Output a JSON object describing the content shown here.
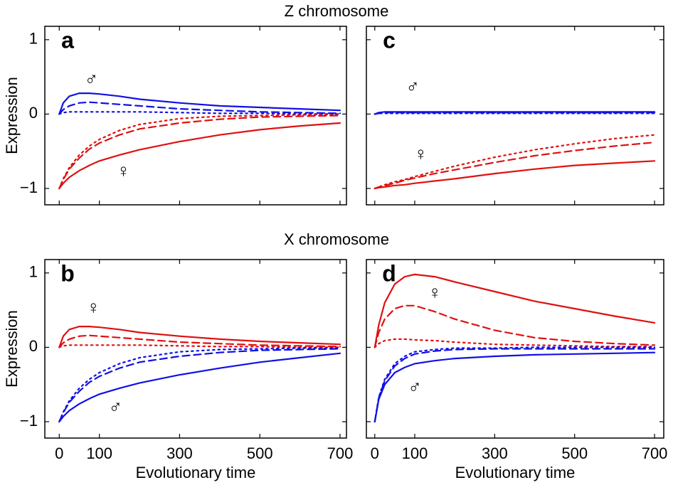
{
  "headings": [
    "Z chromosome",
    "X chromosome"
  ],
  "chart_data": [
    {
      "type": "line",
      "panel": "a",
      "ylabel": "Expression",
      "xlim": [
        -36,
        716
      ],
      "ylim": [
        -1.22,
        1.18
      ],
      "xticks": [
        0,
        100,
        300,
        500,
        700
      ],
      "yticks": [
        -1,
        0,
        1
      ],
      "show_xtick_labels": false,
      "show_ytick_labels": true,
      "x": [
        0,
        10,
        25,
        50,
        75,
        100,
        150,
        200,
        300,
        400,
        500,
        600,
        700
      ],
      "series": [
        {
          "color": "#1010e6",
          "dash": "solid",
          "values": [
            0,
            0.15,
            0.24,
            0.28,
            0.28,
            0.27,
            0.24,
            0.2,
            0.15,
            0.11,
            0.09,
            0.07,
            0.05
          ]
        },
        {
          "color": "#1010e6",
          "dash": "dashed",
          "values": [
            0,
            0.06,
            0.11,
            0.15,
            0.16,
            0.15,
            0.13,
            0.11,
            0.07,
            0.05,
            0.03,
            0.02,
            0.01
          ]
        },
        {
          "color": "#1010e6",
          "dash": "dotted",
          "values": [
            0,
            0.02,
            0.03,
            0.03,
            0.03,
            0.03,
            0.03,
            0.03,
            0.02,
            0.01,
            0.01,
            0,
            0
          ]
        },
        {
          "color": "#e01010",
          "dash": "solid",
          "values": [
            -1,
            -0.93,
            -0.85,
            -0.76,
            -0.69,
            -0.63,
            -0.55,
            -0.48,
            -0.37,
            -0.28,
            -0.21,
            -0.16,
            -0.12
          ]
        },
        {
          "color": "#e01010",
          "dash": "dashed",
          "values": [
            -1,
            -0.88,
            -0.74,
            -0.59,
            -0.47,
            -0.39,
            -0.28,
            -0.2,
            -0.12,
            -0.07,
            -0.04,
            -0.03,
            -0.02
          ]
        },
        {
          "color": "#e01010",
          "dash": "dotted",
          "values": [
            -1,
            -0.87,
            -0.72,
            -0.55,
            -0.43,
            -0.34,
            -0.22,
            -0.14,
            -0.06,
            -0.03,
            -0.02,
            -0.01,
            -0.01
          ]
        }
      ],
      "annotations": [
        {
          "text": "♂",
          "x": 80,
          "y": 0.45,
          "color": "#1010e6"
        },
        {
          "text": "♀",
          "x": 160,
          "y": -0.78,
          "color": "#e01010"
        }
      ]
    },
    {
      "type": "line",
      "panel": "b",
      "ylabel": "Expression",
      "xlabel": "Evolutionary time",
      "xlim": [
        -36,
        716
      ],
      "ylim": [
        -1.22,
        1.18
      ],
      "xticks": [
        0,
        100,
        300,
        500,
        700
      ],
      "yticks": [
        -1,
        0,
        1
      ],
      "show_xtick_labels": true,
      "show_ytick_labels": true,
      "x": [
        0,
        10,
        25,
        50,
        75,
        100,
        150,
        200,
        300,
        400,
        500,
        600,
        700
      ],
      "series": [
        {
          "color": "#e01010",
          "dash": "solid",
          "values": [
            0,
            0.15,
            0.24,
            0.28,
            0.28,
            0.27,
            0.24,
            0.2,
            0.15,
            0.11,
            0.08,
            0.06,
            0.04
          ]
        },
        {
          "color": "#e01010",
          "dash": "dashed",
          "values": [
            0,
            0.06,
            0.11,
            0.15,
            0.16,
            0.15,
            0.13,
            0.11,
            0.07,
            0.05,
            0.03,
            0.02,
            0.01
          ]
        },
        {
          "color": "#e01010",
          "dash": "dotted",
          "values": [
            0,
            0.02,
            0.03,
            0.03,
            0.03,
            0.03,
            0.03,
            0.03,
            0.02,
            0.01,
            0.01,
            0,
            0
          ]
        },
        {
          "color": "#1010e6",
          "dash": "solid",
          "values": [
            -1,
            -0.93,
            -0.85,
            -0.76,
            -0.69,
            -0.63,
            -0.55,
            -0.48,
            -0.37,
            -0.28,
            -0.2,
            -0.14,
            -0.08
          ]
        },
        {
          "color": "#1010e6",
          "dash": "dashed",
          "values": [
            -1,
            -0.88,
            -0.74,
            -0.59,
            -0.47,
            -0.39,
            -0.28,
            -0.2,
            -0.12,
            -0.07,
            -0.04,
            -0.03,
            -0.02
          ]
        },
        {
          "color": "#1010e6",
          "dash": "dotted",
          "values": [
            -1,
            -0.87,
            -0.72,
            -0.55,
            -0.43,
            -0.34,
            -0.22,
            -0.14,
            -0.06,
            -0.03,
            -0.02,
            -0.01,
            -0.01
          ]
        }
      ],
      "annotations": [
        {
          "text": "♀",
          "x": 85,
          "y": 0.52,
          "color": "#e01010"
        },
        {
          "text": "♂",
          "x": 140,
          "y": -0.82,
          "color": "#1010e6"
        }
      ]
    },
    {
      "type": "line",
      "panel": "c",
      "xlim": [
        -21,
        723
      ],
      "ylim": [
        -1.22,
        1.18
      ],
      "xticks": [
        0,
        100,
        300,
        500,
        700
      ],
      "yticks": [
        -1,
        0,
        1
      ],
      "show_xtick_labels": false,
      "show_ytick_labels": false,
      "x": [
        0,
        10,
        25,
        50,
        75,
        100,
        150,
        200,
        300,
        400,
        500,
        600,
        700
      ],
      "series": [
        {
          "color": "#1010e6",
          "dash": "solid",
          "values": [
            0,
            0.02,
            0.03,
            0.03,
            0.03,
            0.03,
            0.03,
            0.03,
            0.03,
            0.03,
            0.03,
            0.03,
            0.03
          ]
        },
        {
          "color": "#1010e6",
          "dash": "dashed",
          "values": [
            0,
            0.01,
            0.02,
            0.02,
            0.02,
            0.02,
            0.02,
            0.02,
            0.02,
            0.02,
            0.02,
            0.02,
            0.02
          ]
        },
        {
          "color": "#1010e6",
          "dash": "dotted",
          "values": [
            0,
            0.01,
            0.01,
            0.01,
            0.01,
            0.01,
            0.01,
            0.01,
            0.01,
            0.01,
            0.01,
            0.01,
            0.01
          ]
        },
        {
          "color": "#e01010",
          "dash": "solid",
          "values": [
            -1,
            -0.99,
            -0.98,
            -0.96,
            -0.95,
            -0.93,
            -0.9,
            -0.87,
            -0.8,
            -0.74,
            -0.69,
            -0.66,
            -0.63
          ]
        },
        {
          "color": "#e01010",
          "dash": "dashed",
          "values": [
            -1,
            -0.98,
            -0.96,
            -0.93,
            -0.89,
            -0.86,
            -0.8,
            -0.75,
            -0.65,
            -0.56,
            -0.49,
            -0.43,
            -0.38
          ]
        },
        {
          "color": "#e01010",
          "dash": "dotted",
          "values": [
            -1,
            -0.98,
            -0.95,
            -0.91,
            -0.88,
            -0.84,
            -0.77,
            -0.7,
            -0.58,
            -0.48,
            -0.4,
            -0.33,
            -0.28
          ]
        }
      ],
      "annotations": [
        {
          "text": "♂",
          "x": 95,
          "y": 0.35,
          "color": "#1010e6"
        },
        {
          "text": "♀",
          "x": 115,
          "y": -0.55,
          "color": "#e01010"
        }
      ]
    },
    {
      "type": "line",
      "panel": "d",
      "xlabel": "Evolutionary time",
      "xlim": [
        -21,
        723
      ],
      "ylim": [
        -1.22,
        1.18
      ],
      "xticks": [
        0,
        100,
        300,
        500,
        700
      ],
      "yticks": [
        -1,
        0,
        1
      ],
      "show_xtick_labels": true,
      "show_ytick_labels": false,
      "x": [
        0,
        10,
        25,
        50,
        75,
        100,
        150,
        200,
        300,
        400,
        500,
        600,
        700
      ],
      "series": [
        {
          "color": "#e01010",
          "dash": "solid",
          "values": [
            0,
            0.3,
            0.6,
            0.85,
            0.95,
            0.98,
            0.95,
            0.88,
            0.75,
            0.62,
            0.52,
            0.42,
            0.33
          ]
        },
        {
          "color": "#e01010",
          "dash": "dashed",
          "values": [
            0,
            0.2,
            0.38,
            0.52,
            0.56,
            0.56,
            0.48,
            0.38,
            0.23,
            0.13,
            0.08,
            0.05,
            0.03
          ]
        },
        {
          "color": "#e01010",
          "dash": "dotted",
          "values": [
            0,
            0.05,
            0.09,
            0.11,
            0.11,
            0.1,
            0.09,
            0.07,
            0.04,
            0.03,
            0.02,
            0.01,
            0.01
          ]
        },
        {
          "color": "#1010e6",
          "dash": "solid",
          "values": [
            -1,
            -0.7,
            -0.5,
            -0.34,
            -0.27,
            -0.22,
            -0.18,
            -0.15,
            -0.12,
            -0.1,
            -0.09,
            -0.08,
            -0.07
          ]
        },
        {
          "color": "#1010e6",
          "dash": "dashed",
          "values": [
            -1,
            -0.68,
            -0.45,
            -0.25,
            -0.15,
            -0.09,
            -0.05,
            -0.03,
            -0.02,
            -0.02,
            -0.02,
            -0.02,
            -0.02
          ]
        },
        {
          "color": "#1010e6",
          "dash": "dotted",
          "values": [
            -1,
            -0.67,
            -0.43,
            -0.22,
            -0.12,
            -0.06,
            -0.03,
            -0.01,
            -0.01,
            0,
            0,
            0,
            0
          ]
        }
      ],
      "annotations": [
        {
          "text": "♀",
          "x": 150,
          "y": 0.72,
          "color": "#e01010"
        },
        {
          "text": "♂",
          "x": 100,
          "y": -0.55,
          "color": "#1010e6"
        }
      ]
    }
  ]
}
